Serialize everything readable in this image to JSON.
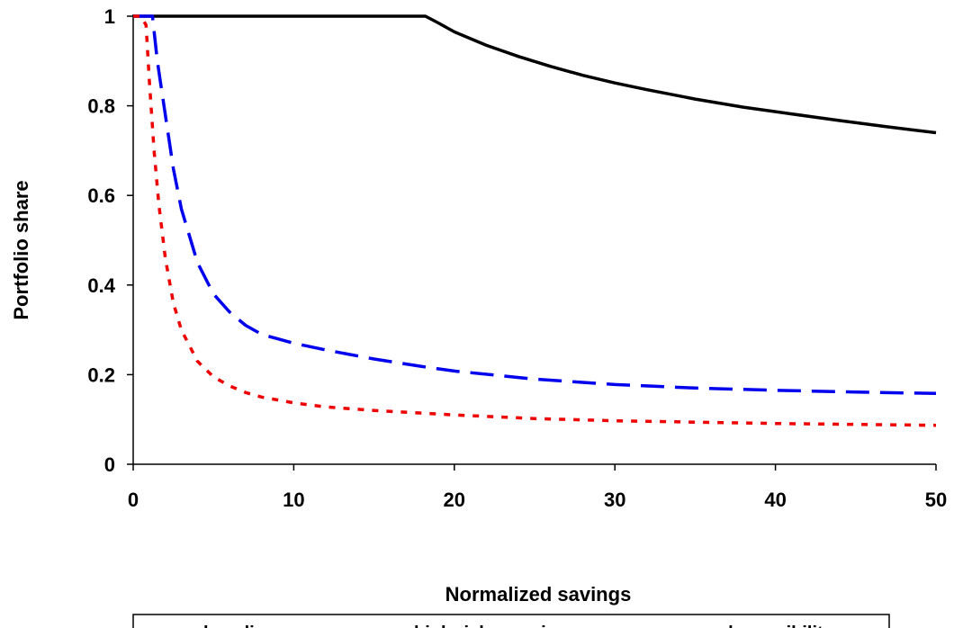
{
  "chart_data": {
    "type": "line",
    "xlabel": "Normalized savings",
    "ylabel": "Portfolio share",
    "xlim": [
      0,
      50
    ],
    "ylim": [
      0,
      1
    ],
    "x_ticks": [
      "0",
      "10",
      "20",
      "30",
      "40",
      "50"
    ],
    "y_ticks": [
      "0",
      "0.2",
      "0.4",
      "0.6",
      "0.8",
      "1"
    ],
    "grid": false,
    "legend_position": "bottom",
    "series": [
      {
        "name": "baseline",
        "color": "#000000",
        "style": "solid",
        "x": [
          0,
          5,
          10,
          15,
          18.2,
          19,
          20,
          22,
          24,
          26,
          28,
          30,
          32,
          35,
          38,
          41,
          44,
          47,
          50
        ],
        "y": [
          1,
          1,
          1,
          1,
          1,
          0.985,
          0.965,
          0.935,
          0.91,
          0.888,
          0.868,
          0.851,
          0.836,
          0.815,
          0.797,
          0.782,
          0.767,
          0.753,
          0.74
        ]
      },
      {
        "name": "high risk aversion",
        "color": "#0000ee",
        "style": "dashed",
        "x": [
          0,
          1.2,
          1.5,
          2,
          2.5,
          3,
          4,
          5,
          6,
          7,
          8,
          9,
          10,
          12,
          15,
          18,
          20,
          25,
          30,
          35,
          40,
          45,
          50
        ],
        "y": [
          1,
          1,
          0.9,
          0.78,
          0.66,
          0.57,
          0.45,
          0.38,
          0.34,
          0.31,
          0.29,
          0.28,
          0.27,
          0.255,
          0.235,
          0.218,
          0.208,
          0.19,
          0.178,
          0.17,
          0.165,
          0.161,
          0.158
        ]
      },
      {
        "name": "crash possibility",
        "color": "#ee0000",
        "style": "dotted",
        "x": [
          0,
          0.5,
          0.8,
          1,
          1.3,
          1.6,
          2,
          2.5,
          3,
          4,
          5,
          6,
          7,
          8,
          10,
          12,
          15,
          20,
          25,
          30,
          35,
          40,
          45,
          50
        ],
        "y": [
          1,
          1,
          0.98,
          0.86,
          0.7,
          0.58,
          0.46,
          0.36,
          0.3,
          0.23,
          0.195,
          0.175,
          0.16,
          0.15,
          0.137,
          0.128,
          0.12,
          0.11,
          0.102,
          0.097,
          0.094,
          0.091,
          0.089,
          0.087
        ]
      }
    ]
  }
}
